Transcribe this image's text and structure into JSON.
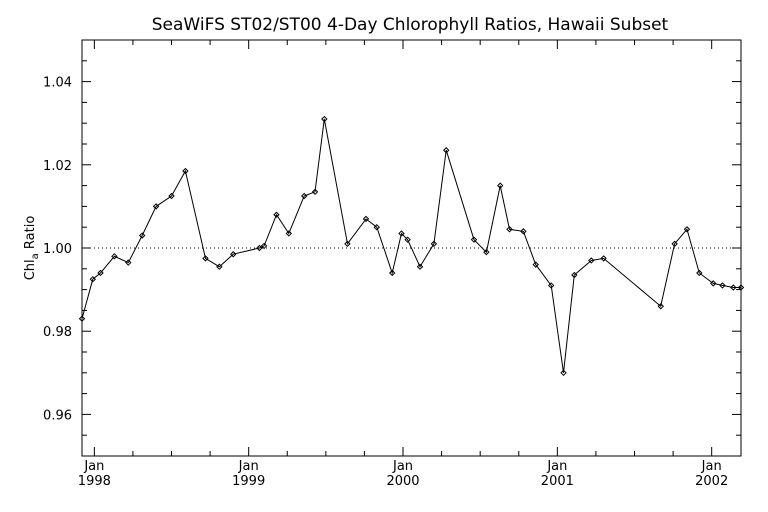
{
  "chart_data": {
    "type": "line",
    "title": "SeaWiFS ST02/ST00 4-Day Chlorophyll Ratios, Hawaii Subset",
    "ylabel_main": "Chl",
    "ylabel_sub": "a",
    "ylabel_rest": " Ratio",
    "xlabel": "",
    "ylim": [
      0.95,
      1.05
    ],
    "yticks": [
      0.96,
      0.98,
      1.0,
      1.02,
      1.04
    ],
    "ytick_labels": [
      "0.96",
      "0.98",
      "1.00",
      "1.02",
      "1.04"
    ],
    "xlim": [
      1997.92,
      2002.19
    ],
    "xticks": [
      {
        "pos": 1998.0,
        "month": "Jan",
        "year": "1998"
      },
      {
        "pos": 1999.0,
        "month": "Jan",
        "year": "1999"
      },
      {
        "pos": 2000.0,
        "month": "Jan",
        "year": "2000"
      },
      {
        "pos": 2001.0,
        "month": "Jan",
        "year": "2001"
      },
      {
        "pos": 2002.0,
        "month": "Jan",
        "year": "2002"
      }
    ],
    "reference_line": 1.0,
    "grid": false,
    "marker": "diamond",
    "series": [
      {
        "x": [
          1997.92,
          1997.99,
          1998.04,
          1998.13,
          1998.22,
          1998.31,
          1998.4,
          1998.5,
          1998.59,
          1998.72,
          1998.81,
          1998.9,
          1999.07,
          1999.1,
          1999.18,
          1999.26,
          1999.36,
          1999.43,
          1999.49,
          1999.64,
          1999.76,
          1999.83,
          1999.93,
          1999.99,
          2000.03,
          2000.11,
          2000.2,
          2000.28,
          2000.46,
          2000.54,
          2000.63,
          2000.69,
          2000.78,
          2000.86,
          2000.96,
          2001.04,
          2001.11,
          2001.22,
          2001.3,
          2001.67,
          2001.76,
          2001.84,
          2001.92,
          2002.01,
          2002.07,
          2002.14,
          2002.19
        ],
        "y": [
          0.983,
          0.9925,
          0.994,
          0.998,
          0.9965,
          1.003,
          1.01,
          1.0125,
          1.0185,
          0.9975,
          0.9955,
          0.9985,
          1.0,
          1.0005,
          1.008,
          1.0035,
          1.0125,
          1.0135,
          1.031,
          1.001,
          1.007,
          1.005,
          0.994,
          1.0035,
          1.002,
          0.9955,
          1.001,
          1.0235,
          1.002,
          0.999,
          1.015,
          1.0045,
          1.004,
          0.996,
          0.991,
          0.97,
          0.9935,
          0.997,
          0.9975,
          0.986,
          1.001,
          1.0045,
          0.994,
          0.9915,
          0.991,
          0.9905,
          0.9905
        ]
      }
    ]
  }
}
